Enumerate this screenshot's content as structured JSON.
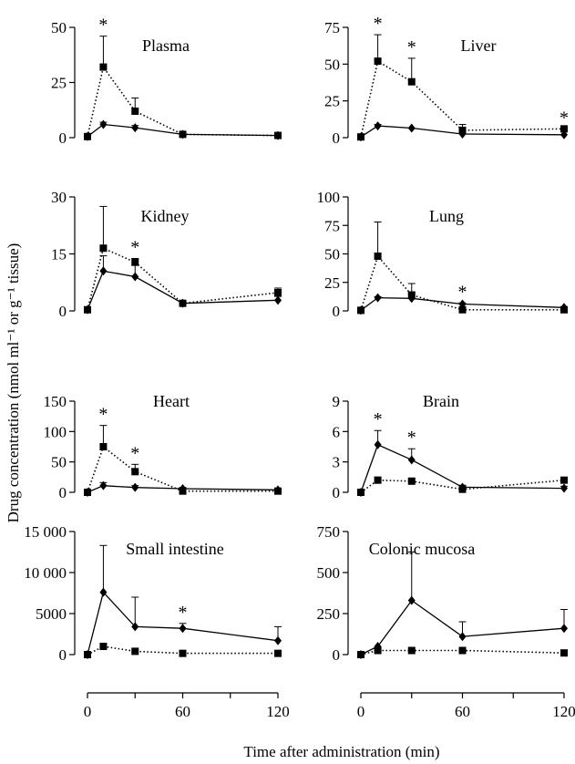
{
  "figure": {
    "xlabel": "Time after administration (min)",
    "ylabel": "Drug concentration (nmol ml⁻¹ or g⁻¹ tissue)",
    "x_ticks": [
      "0",
      "60",
      "120"
    ]
  },
  "chart_data": [
    {
      "type": "line",
      "title": "Plasma",
      "x": [
        0,
        10,
        30,
        60,
        120
      ],
      "ylim": [
        0,
        50
      ],
      "yticks": [
        "0",
        "25",
        "50"
      ],
      "series": [
        {
          "style": "solid",
          "marker": "diamond",
          "values": [
            0.5,
            6,
            4.5,
            1.5,
            1
          ],
          "err": [
            0,
            1,
            1,
            0,
            0
          ]
        },
        {
          "style": "dotted",
          "marker": "square",
          "values": [
            0.5,
            32,
            12,
            1.5,
            1
          ],
          "err": [
            0,
            14,
            6,
            0,
            0
          ]
        }
      ],
      "asterisks": [
        10
      ]
    },
    {
      "type": "line",
      "title": "Liver",
      "x": [
        0,
        10,
        30,
        60,
        120
      ],
      "ylim": [
        0,
        75
      ],
      "yticks": [
        "0",
        "25",
        "50",
        "75"
      ],
      "series": [
        {
          "style": "solid",
          "marker": "diamond",
          "values": [
            0.5,
            8,
            6.5,
            2.5,
            2
          ],
          "err": [
            0,
            1,
            0,
            0,
            0
          ]
        },
        {
          "style": "dotted",
          "marker": "square",
          "values": [
            0.5,
            52,
            38,
            5,
            6
          ],
          "err": [
            0,
            18,
            16,
            4,
            0
          ]
        }
      ],
      "asterisks": [
        10,
        30,
        120
      ]
    },
    {
      "type": "line",
      "title": "Kidney",
      "x": [
        0,
        10,
        30,
        60,
        120
      ],
      "ylim": [
        0,
        30
      ],
      "yticks": [
        "0",
        "15",
        "30"
      ],
      "series": [
        {
          "style": "solid",
          "marker": "diamond",
          "values": [
            0.3,
            10.5,
            9,
            2,
            2.8
          ],
          "err": [
            0,
            4,
            3,
            0.5,
            1
          ]
        },
        {
          "style": "dotted",
          "marker": "square",
          "values": [
            0.3,
            16.5,
            12.8,
            2,
            4.8
          ],
          "err": [
            0,
            11,
            1,
            0.5,
            1.2
          ]
        }
      ],
      "asterisks": [
        30
      ]
    },
    {
      "type": "line",
      "title": "Lung",
      "x": [
        0,
        10,
        30,
        60,
        120
      ],
      "ylim": [
        0,
        100
      ],
      "yticks": [
        "0",
        "25",
        "50",
        "75",
        "100"
      ],
      "series": [
        {
          "style": "solid",
          "marker": "diamond",
          "values": [
            0.5,
            11.5,
            11,
            6,
            3
          ],
          "err": [
            0,
            1,
            5,
            1,
            0
          ]
        },
        {
          "style": "dotted",
          "marker": "square",
          "values": [
            0.5,
            48,
            14,
            1,
            1
          ],
          "err": [
            0,
            30,
            10,
            0,
            0
          ]
        }
      ],
      "asterisks": [
        60
      ]
    },
    {
      "type": "line",
      "title": "Heart",
      "x": [
        0,
        10,
        30,
        60,
        120
      ],
      "ylim": [
        0,
        150
      ],
      "yticks": [
        "0",
        "50",
        "100",
        "150"
      ],
      "series": [
        {
          "style": "solid",
          "marker": "diamond",
          "values": [
            0,
            11,
            8,
            6,
            4
          ],
          "err": [
            0,
            5,
            3,
            2,
            2
          ]
        },
        {
          "style": "dotted",
          "marker": "square",
          "values": [
            0,
            75,
            34,
            2,
            2
          ],
          "err": [
            0,
            35,
            12,
            2,
            2
          ]
        }
      ],
      "asterisks": [
        10,
        30
      ]
    },
    {
      "type": "line",
      "title": "Brain",
      "x": [
        0,
        10,
        30,
        60,
        120
      ],
      "ylim": [
        0,
        9
      ],
      "yticks": [
        "0",
        "3",
        "6",
        "9"
      ],
      "series": [
        {
          "style": "solid",
          "marker": "diamond",
          "values": [
            0,
            4.7,
            3.2,
            0.5,
            0.4
          ],
          "err": [
            0,
            1.4,
            1.1,
            0.2,
            0.2
          ]
        },
        {
          "style": "dotted",
          "marker": "square",
          "values": [
            0,
            1.2,
            1.1,
            0.3,
            1.2
          ],
          "err": [
            0,
            0.3,
            0.3,
            0.2,
            0.2
          ]
        }
      ],
      "asterisks": [
        10,
        30
      ]
    },
    {
      "type": "line",
      "title": "Small intestine",
      "x": [
        0,
        10,
        30,
        60,
        120
      ],
      "ylim": [
        0,
        15000
      ],
      "yticks": [
        "0",
        "5000",
        "10 000",
        "15 000"
      ],
      "series": [
        {
          "style": "solid",
          "marker": "diamond",
          "values": [
            0,
            7600,
            3400,
            3200,
            1700
          ],
          "err": [
            0,
            5700,
            3600,
            600,
            1700
          ]
        },
        {
          "style": "dotted",
          "marker": "square",
          "values": [
            0,
            1000,
            400,
            150,
            150
          ],
          "err": [
            0,
            0,
            0,
            0,
            0
          ]
        }
      ],
      "asterisks": [
        60
      ]
    },
    {
      "type": "line",
      "title": "Colonic mucosa",
      "x": [
        0,
        10,
        30,
        60,
        120
      ],
      "ylim": [
        0,
        750
      ],
      "yticks": [
        "0",
        "250",
        "500",
        "750"
      ],
      "series": [
        {
          "style": "solid",
          "marker": "diamond",
          "values": [
            0,
            50,
            330,
            110,
            160
          ],
          "err": [
            0,
            0,
            295,
            90,
            115
          ]
        },
        {
          "style": "dotted",
          "marker": "square",
          "values": [
            0,
            25,
            25,
            25,
            10
          ],
          "err": [
            0,
            0,
            0,
            0,
            0
          ]
        }
      ],
      "asterisks": []
    }
  ]
}
